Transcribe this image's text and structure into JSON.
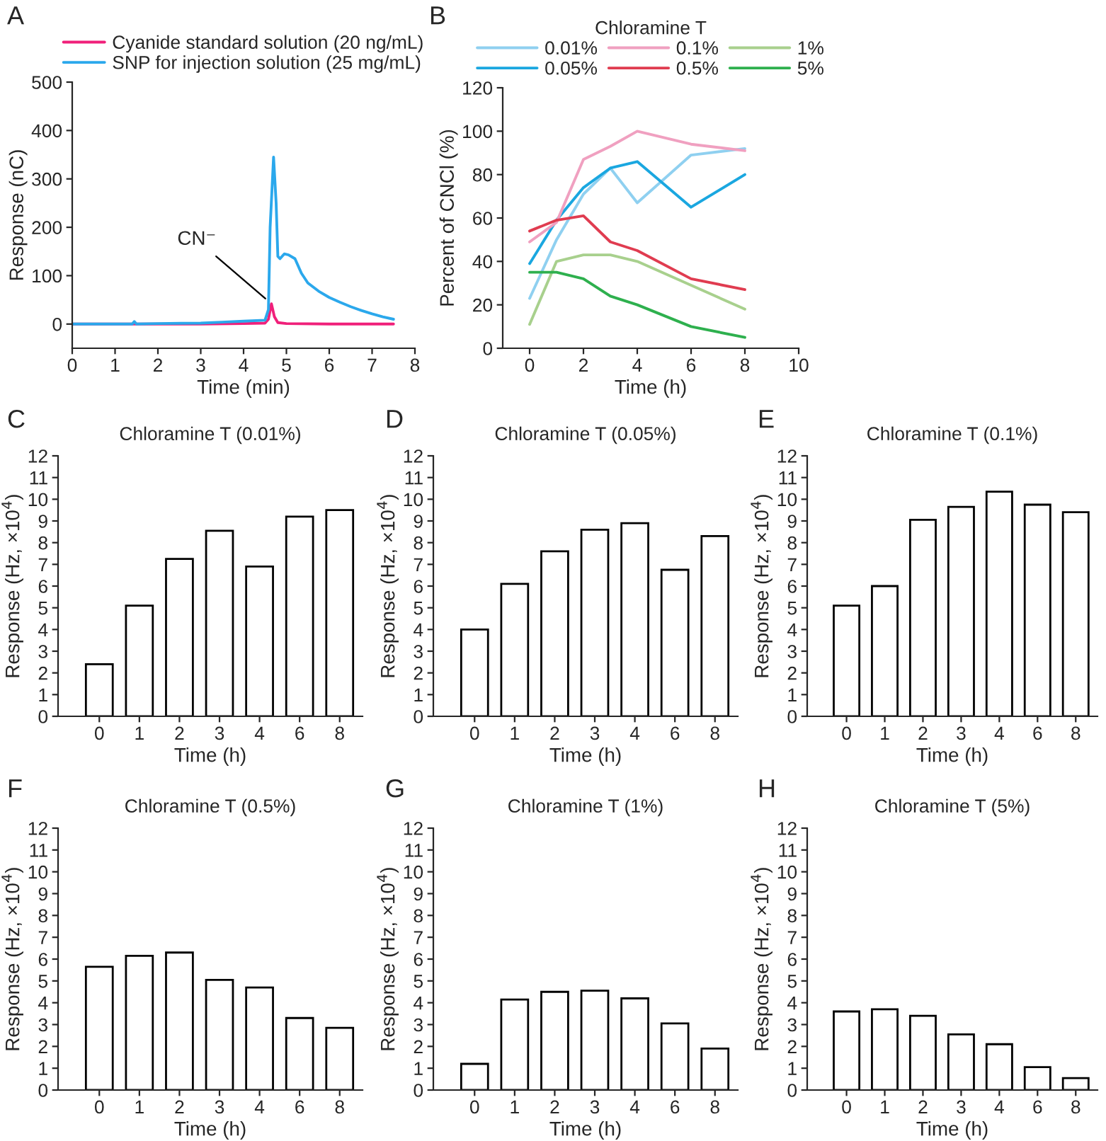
{
  "chart_data": [
    {
      "type": "line",
      "annotations": [
        "A",
        {
          "text": "CN⁻",
          "x": 4.65,
          "y": 42
        }
      ],
      "xlabel": "Time (min)",
      "ylabel": "Response (nC)",
      "xlim": [
        0,
        8
      ],
      "xticks": [
        0,
        1,
        2,
        3,
        4,
        5,
        6,
        7,
        8
      ],
      "ylim": [
        -50,
        500
      ],
      "yticks": [
        0,
        100,
        200,
        300,
        400,
        500
      ],
      "legend": "top",
      "series": [
        {
          "name": "Cyanide standard solution (20 ng/mL)",
          "color": "#f0207a",
          "x": [
            0,
            1,
            2,
            3,
            4,
            4.5,
            4.58,
            4.65,
            4.72,
            4.8,
            5,
            6,
            7,
            7.5
          ],
          "values": [
            0,
            0,
            0,
            0,
            1,
            2,
            10,
            42,
            15,
            3,
            1,
            0,
            0,
            0
          ]
        },
        {
          "name": "SNP for injection solution (25 mg/mL)",
          "color": "#2ba8ec",
          "x": [
            0,
            1,
            1.4,
            1.45,
            1.5,
            2,
            3,
            3.5,
            4,
            4.5,
            4.58,
            4.62,
            4.7,
            4.76,
            4.8,
            4.85,
            4.95,
            5.05,
            5.2,
            5.35,
            5.5,
            5.75,
            6,
            6.25,
            6.5,
            6.75,
            7,
            7.25,
            7.5
          ],
          "values": [
            0,
            0,
            0,
            5,
            0,
            1,
            2,
            4,
            6,
            8,
            30,
            200,
            345,
            250,
            140,
            135,
            145,
            143,
            135,
            105,
            85,
            68,
            55,
            45,
            36,
            28,
            21,
            15,
            10
          ]
        }
      ]
    },
    {
      "type": "line",
      "annotations": [
        "B"
      ],
      "xlabel": "Time (h)",
      "ylabel": "Percent of CNCl (%)",
      "legend_title": "Chloramine T",
      "legend": "top",
      "x": [
        0,
        1,
        2,
        3,
        4,
        6,
        8
      ],
      "xlim": [
        -1,
        10
      ],
      "xticks": [
        0,
        2,
        4,
        6,
        8,
        10
      ],
      "ylim": [
        0,
        120
      ],
      "yticks": [
        0,
        20,
        40,
        60,
        80,
        100,
        120
      ],
      "series": [
        {
          "name": "0.01%",
          "color": "#8fd0f0",
          "values": [
            23,
            50,
            71,
            83,
            67,
            89,
            92
          ]
        },
        {
          "name": "0.05%",
          "color": "#1aa7e0",
          "values": [
            39,
            59,
            74,
            83,
            86,
            65,
            80
          ]
        },
        {
          "name": "0.1%",
          "color": "#f0a0c0",
          "values": [
            49,
            58,
            87,
            93,
            100,
            94,
            91
          ]
        },
        {
          "name": "0.5%",
          "color": "#e03c50",
          "values": [
            54,
            59,
            61,
            49,
            45,
            32,
            27
          ]
        },
        {
          "name": "1%",
          "color": "#a8d08d",
          "values": [
            11,
            40,
            43,
            43,
            40,
            29,
            18
          ]
        },
        {
          "name": "5%",
          "color": "#2eb04e",
          "values": [
            35,
            35,
            32,
            24,
            20,
            10,
            5
          ]
        }
      ]
    },
    {
      "type": "bar",
      "annotations": [
        "C"
      ],
      "title": "Chloramine T (0.01%)",
      "xlabel": "Time (h)",
      "ylabel": "Response (Hz, ×10$^{4}$)",
      "categories": [
        "0",
        "1",
        "2",
        "3",
        "4",
        "6",
        "8"
      ],
      "values": [
        2.4,
        5.1,
        7.25,
        8.55,
        6.9,
        9.2,
        9.5
      ],
      "color": "#ffffff",
      "ylim": [
        0,
        12
      ],
      "yticks": [
        0,
        1,
        2,
        3,
        4,
        5,
        6,
        7,
        8,
        9,
        10,
        11,
        12
      ]
    },
    {
      "type": "bar",
      "annotations": [
        "D"
      ],
      "title": "Chloramine T (0.05%)",
      "xlabel": "Time (h)",
      "ylabel": "Response (Hz, ×10$^{4}$)",
      "categories": [
        "0",
        "1",
        "2",
        "3",
        "4",
        "6",
        "8"
      ],
      "values": [
        4.0,
        6.1,
        7.6,
        8.6,
        8.9,
        6.75,
        8.3
      ],
      "color": "#ffffff",
      "ylim": [
        0,
        12
      ],
      "yticks": [
        0,
        1,
        2,
        3,
        4,
        5,
        6,
        7,
        8,
        9,
        10,
        11,
        12
      ]
    },
    {
      "type": "bar",
      "annotations": [
        "E"
      ],
      "title": "Chloramine T (0.1%)",
      "xlabel": "Time (h)",
      "ylabel": "Response (Hz, ×10$^{4}$)",
      "categories": [
        "0",
        "1",
        "2",
        "3",
        "4",
        "6",
        "8"
      ],
      "values": [
        5.1,
        6.0,
        9.05,
        9.65,
        10.35,
        9.75,
        9.4
      ],
      "color": "#ffffff",
      "ylim": [
        0,
        12
      ],
      "yticks": [
        0,
        1,
        2,
        3,
        4,
        5,
        6,
        7,
        8,
        9,
        10,
        11,
        12
      ]
    },
    {
      "type": "bar",
      "annotations": [
        "F"
      ],
      "title": "Chloramine T (0.5%)",
      "xlabel": "Time (h)",
      "ylabel": "Response (Hz, ×10$^{4}$)",
      "categories": [
        "0",
        "1",
        "2",
        "3",
        "4",
        "6",
        "8"
      ],
      "values": [
        5.65,
        6.15,
        6.3,
        5.05,
        4.7,
        3.3,
        2.85
      ],
      "color": "#ffffff",
      "ylim": [
        0,
        12
      ],
      "yticks": [
        0,
        1,
        2,
        3,
        4,
        5,
        6,
        7,
        8,
        9,
        10,
        11,
        12
      ]
    },
    {
      "type": "bar",
      "annotations": [
        "G"
      ],
      "title": "Chloramine T (1%)",
      "xlabel": "Time (h)",
      "ylabel": "Response (Hz, ×10$^{4}$)",
      "categories": [
        "0",
        "1",
        "2",
        "3",
        "4",
        "6",
        "8"
      ],
      "values": [
        1.2,
        4.15,
        4.5,
        4.55,
        4.2,
        3.05,
        1.9
      ],
      "color": "#ffffff",
      "ylim": [
        0,
        12
      ],
      "yticks": [
        0,
        1,
        2,
        3,
        4,
        5,
        6,
        7,
        8,
        9,
        10,
        11,
        12
      ]
    },
    {
      "type": "bar",
      "annotations": [
        "H"
      ],
      "title": "Chloramine T (5%)",
      "xlabel": "Time (h)",
      "ylabel": "Response (Hz, ×10$^{4}$)",
      "categories": [
        "0",
        "1",
        "2",
        "3",
        "4",
        "6",
        "8"
      ],
      "values": [
        3.6,
        3.7,
        3.4,
        2.55,
        2.1,
        1.05,
        0.55
      ],
      "color": "#ffffff",
      "ylim": [
        0,
        12
      ],
      "yticks": [
        0,
        1,
        2,
        3,
        4,
        5,
        6,
        7,
        8,
        9,
        10,
        11,
        12
      ]
    }
  ]
}
